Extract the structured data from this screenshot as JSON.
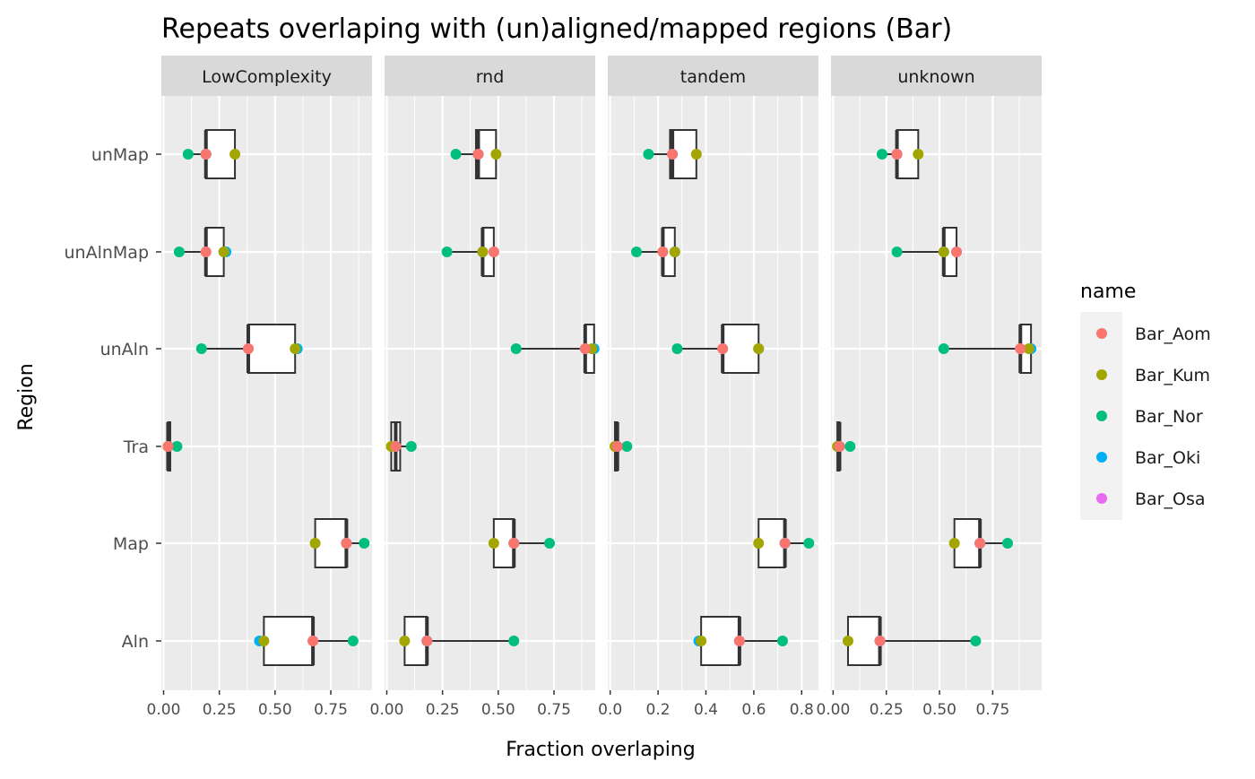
{
  "chart_data": {
    "type": "boxplot",
    "title": "Repeats overlaping with (un)aligned/mapped regions (Bar)",
    "xlabel": "Fraction overlaping",
    "ylabel": "Region",
    "categories": [
      "unMap",
      "unAlnMap",
      "unAln",
      "Tra",
      "Map",
      "Aln"
    ],
    "legend": {
      "title": "name",
      "position": "right",
      "entries": [
        {
          "name": "Bar_Aom",
          "color": "#F8766D"
        },
        {
          "name": "Bar_Kum",
          "color": "#A3A500"
        },
        {
          "name": "Bar_Nor",
          "color": "#00BF7D"
        },
        {
          "name": "Bar_Oki",
          "color": "#00B0F6"
        },
        {
          "name": "Bar_Osa",
          "color": "#E76BF3"
        }
      ]
    },
    "grid": true,
    "panels": [
      {
        "label": "LowComplexity",
        "xlim": [
          -0.01,
          0.935
        ],
        "ticks": [
          0,
          0.25,
          0.5,
          0.75
        ],
        "tick_labels": [
          "0.00",
          "0.25",
          "0.50",
          "0.75"
        ],
        "boxes": {
          "unMap": {
            "min": 0.1,
            "q1": 0.19,
            "median": 0.19,
            "q3": 0.32,
            "max": 0.32
          },
          "unAlnMap": {
            "min": 0.06,
            "q1": 0.19,
            "median": 0.19,
            "q3": 0.27,
            "max": 0.28
          },
          "unAln": {
            "min": 0.17,
            "q1": 0.38,
            "median": 0.38,
            "q3": 0.59,
            "max": 0.6
          },
          "Tra": {
            "min": 0.02,
            "q1": 0.02,
            "median": 0.02,
            "q3": 0.03,
            "max": 0.06
          },
          "Map": {
            "min": 0.68,
            "q1": 0.68,
            "median": 0.82,
            "q3": 0.82,
            "max": 0.9
          },
          "Aln": {
            "min": 0.43,
            "q1": 0.45,
            "median": 0.67,
            "q3": 0.67,
            "max": 0.85
          }
        },
        "points": {
          "unMap": {
            "Bar_Aom": 0.19,
            "Bar_Kum": 0.32,
            "Bar_Nor": 0.11,
            "Bar_Oki": 0.19,
            "Bar_Osa": 0.19
          },
          "unAlnMap": {
            "Bar_Aom": 0.19,
            "Bar_Kum": 0.27,
            "Bar_Nor": 0.07,
            "Bar_Oki": 0.28,
            "Bar_Osa": 0.19
          },
          "unAln": {
            "Bar_Aom": 0.38,
            "Bar_Kum": 0.59,
            "Bar_Nor": 0.17,
            "Bar_Oki": 0.6,
            "Bar_Osa": 0.38
          },
          "Tra": {
            "Bar_Aom": 0.02,
            "Bar_Kum": 0.02,
            "Bar_Nor": 0.06,
            "Bar_Oki": 0.02,
            "Bar_Osa": 0.02
          },
          "Map": {
            "Bar_Aom": 0.82,
            "Bar_Kum": 0.68,
            "Bar_Nor": 0.9,
            "Bar_Oki": 0.82,
            "Bar_Osa": 0.82
          },
          "Aln": {
            "Bar_Aom": 0.67,
            "Bar_Kum": 0.45,
            "Bar_Nor": 0.85,
            "Bar_Oki": 0.43,
            "Bar_Osa": 0.67
          }
        }
      },
      {
        "label": "rnd",
        "xlim": [
          -0.01,
          0.935
        ],
        "ticks": [
          0,
          0.25,
          0.5,
          0.75
        ],
        "tick_labels": [
          "0.00",
          "0.25",
          "0.50",
          "0.75"
        ],
        "boxes": {
          "unMap": {
            "min": 0.31,
            "q1": 0.4,
            "median": 0.41,
            "q3": 0.49,
            "max": 0.49
          },
          "unAlnMap": {
            "min": 0.27,
            "q1": 0.43,
            "median": 0.43,
            "q3": 0.48,
            "max": 0.48
          },
          "unAln": {
            "min": 0.58,
            "q1": 0.89,
            "median": 0.89,
            "q3": 0.93,
            "max": 0.93
          },
          "Tra": {
            "min": 0.02,
            "q1": 0.02,
            "median": 0.04,
            "q3": 0.06,
            "max": 0.11
          },
          "Map": {
            "min": 0.48,
            "q1": 0.48,
            "median": 0.57,
            "q3": 0.57,
            "max": 0.73
          },
          "Aln": {
            "min": 0.08,
            "q1": 0.08,
            "median": 0.18,
            "q3": 0.18,
            "max": 0.57
          }
        },
        "points": {
          "unMap": {
            "Bar_Aom": 0.41,
            "Bar_Kum": 0.49,
            "Bar_Nor": 0.31,
            "Bar_Oki": 0.41,
            "Bar_Osa": 0.41
          },
          "unAlnMap": {
            "Bar_Aom": 0.48,
            "Bar_Kum": 0.43,
            "Bar_Nor": 0.27,
            "Bar_Oki": 0.43,
            "Bar_Osa": 0.48
          },
          "unAln": {
            "Bar_Aom": 0.89,
            "Bar_Kum": 0.92,
            "Bar_Nor": 0.58,
            "Bar_Oki": 0.93,
            "Bar_Osa": 0.89
          },
          "Tra": {
            "Bar_Aom": 0.04,
            "Bar_Kum": 0.02,
            "Bar_Nor": 0.11,
            "Bar_Oki": 0.04,
            "Bar_Osa": 0.04
          },
          "Map": {
            "Bar_Aom": 0.57,
            "Bar_Kum": 0.48,
            "Bar_Nor": 0.73,
            "Bar_Oki": 0.57,
            "Bar_Osa": 0.57
          },
          "Aln": {
            "Bar_Aom": 0.18,
            "Bar_Kum": 0.08,
            "Bar_Nor": 0.57,
            "Bar_Oki": 0.18,
            "Bar_Osa": 0.18
          }
        }
      },
      {
        "label": "tandem",
        "xlim": [
          -0.01,
          0.87
        ],
        "ticks": [
          0,
          0.2,
          0.4,
          0.6,
          0.8
        ],
        "tick_labels": [
          "0.0",
          "0.2",
          "0.4",
          "0.6",
          "0.8"
        ],
        "boxes": {
          "unMap": {
            "min": 0.16,
            "q1": 0.25,
            "median": 0.26,
            "q3": 0.36,
            "max": 0.36
          },
          "unAlnMap": {
            "min": 0.11,
            "q1": 0.22,
            "median": 0.22,
            "q3": 0.27,
            "max": 0.27
          },
          "unAln": {
            "min": 0.28,
            "q1": 0.47,
            "median": 0.47,
            "q3": 0.62,
            "max": 0.62
          },
          "Tra": {
            "min": 0.02,
            "q1": 0.02,
            "median": 0.03,
            "q3": 0.03,
            "max": 0.07
          },
          "Map": {
            "min": 0.62,
            "q1": 0.62,
            "median": 0.73,
            "q3": 0.73,
            "max": 0.83
          },
          "Aln": {
            "min": 0.37,
            "q1": 0.38,
            "median": 0.54,
            "q3": 0.54,
            "max": 0.72
          }
        },
        "points": {
          "unMap": {
            "Bar_Aom": 0.26,
            "Bar_Kum": 0.36,
            "Bar_Nor": 0.16,
            "Bar_Oki": 0.26,
            "Bar_Osa": 0.26
          },
          "unAlnMap": {
            "Bar_Aom": 0.22,
            "Bar_Kum": 0.27,
            "Bar_Nor": 0.11,
            "Bar_Oki": 0.27,
            "Bar_Osa": 0.22
          },
          "unAln": {
            "Bar_Aom": 0.47,
            "Bar_Kum": 0.62,
            "Bar_Nor": 0.28,
            "Bar_Oki": 0.62,
            "Bar_Osa": 0.47
          },
          "Tra": {
            "Bar_Aom": 0.03,
            "Bar_Kum": 0.02,
            "Bar_Nor": 0.07,
            "Bar_Oki": 0.03,
            "Bar_Osa": 0.03
          },
          "Map": {
            "Bar_Aom": 0.73,
            "Bar_Kum": 0.62,
            "Bar_Nor": 0.83,
            "Bar_Oki": 0.73,
            "Bar_Osa": 0.73
          },
          "Aln": {
            "Bar_Aom": 0.54,
            "Bar_Kum": 0.38,
            "Bar_Nor": 0.72,
            "Bar_Oki": 0.37,
            "Bar_Osa": 0.54
          }
        }
      },
      {
        "label": "unknown",
        "xlim": [
          -0.01,
          0.98
        ],
        "ticks": [
          0,
          0.25,
          0.5,
          0.75
        ],
        "tick_labels": [
          "0.00",
          "0.25",
          "0.50",
          "0.75"
        ],
        "boxes": {
          "unMap": {
            "min": 0.23,
            "q1": 0.3,
            "median": 0.3,
            "q3": 0.4,
            "max": 0.4
          },
          "unAlnMap": {
            "min": 0.3,
            "q1": 0.52,
            "median": 0.52,
            "q3": 0.58,
            "max": 0.58
          },
          "unAln": {
            "min": 0.52,
            "q1": 0.88,
            "median": 0.88,
            "q3": 0.93,
            "max": 0.93
          },
          "Tra": {
            "min": 0.02,
            "q1": 0.02,
            "median": 0.03,
            "q3": 0.03,
            "max": 0.08
          },
          "Map": {
            "min": 0.57,
            "q1": 0.57,
            "median": 0.69,
            "q3": 0.69,
            "max": 0.82
          },
          "Aln": {
            "min": 0.07,
            "q1": 0.07,
            "median": 0.22,
            "q3": 0.22,
            "max": 0.67
          }
        },
        "points": {
          "unMap": {
            "Bar_Aom": 0.3,
            "Bar_Kum": 0.4,
            "Bar_Nor": 0.23,
            "Bar_Oki": 0.3,
            "Bar_Osa": 0.3
          },
          "unAlnMap": {
            "Bar_Aom": 0.58,
            "Bar_Kum": 0.52,
            "Bar_Nor": 0.3,
            "Bar_Oki": 0.52,
            "Bar_Osa": 0.58
          },
          "unAln": {
            "Bar_Aom": 0.88,
            "Bar_Kum": 0.92,
            "Bar_Nor": 0.52,
            "Bar_Oki": 0.93,
            "Bar_Osa": 0.88
          },
          "Tra": {
            "Bar_Aom": 0.03,
            "Bar_Kum": 0.02,
            "Bar_Nor": 0.08,
            "Bar_Oki": 0.03,
            "Bar_Osa": 0.03
          },
          "Map": {
            "Bar_Aom": 0.69,
            "Bar_Kum": 0.57,
            "Bar_Nor": 0.82,
            "Bar_Oki": 0.69,
            "Bar_Osa": 0.69
          },
          "Aln": {
            "Bar_Aom": 0.22,
            "Bar_Kum": 0.07,
            "Bar_Nor": 0.67,
            "Bar_Oki": 0.22,
            "Bar_Osa": 0.22
          }
        }
      }
    ]
  }
}
